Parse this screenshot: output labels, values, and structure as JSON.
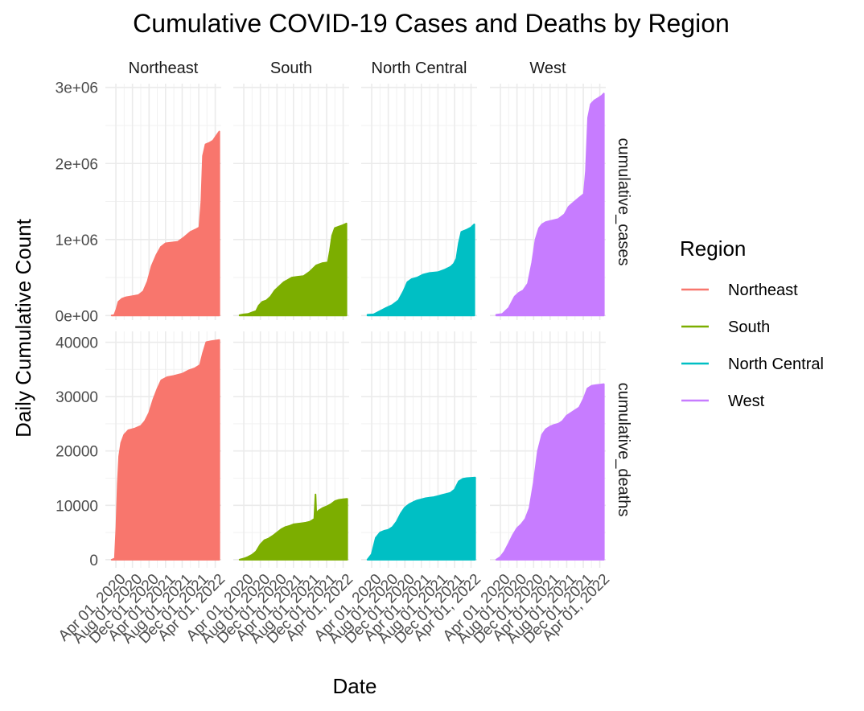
{
  "chart_data": {
    "type": "area",
    "title": "Cumulative COVID-19 Cases and Deaths by Region",
    "xlabel": "Date",
    "ylabel": "Daily Cumulative Count",
    "x_tick_labels": [
      "Apr 01, 2020",
      "Aug 01, 2020",
      "Dec 01, 2020",
      "Apr 01, 2021",
      "Aug 01, 2021",
      "Dec 01, 2021",
      "Apr 01, 2022"
    ],
    "x_ticks": [
      "2020-04-01",
      "2020-08-01",
      "2020-12-01",
      "2021-04-01",
      "2021-08-01",
      "2021-12-01",
      "2022-04-01"
    ],
    "xlim": [
      "2020-01-15",
      "2022-05-15"
    ],
    "facet_columns": [
      "Northeast",
      "South",
      "North Central",
      "West"
    ],
    "facet_rows": [
      "cumulative_cases",
      "cumulative_deaths"
    ],
    "row_axes": {
      "cumulative_cases": {
        "ylim": [
          -60000,
          3050000
        ],
        "ticks": [
          0,
          1000000,
          2000000,
          3000000
        ],
        "tick_labels": [
          "0e+00",
          "1e+06",
          "2e+06",
          "3e+06"
        ]
      },
      "cumulative_deaths": {
        "ylim": [
          -1500,
          42000
        ],
        "ticks": [
          0,
          10000,
          20000,
          30000,
          40000
        ],
        "tick_labels": [
          "0",
          "10000",
          "20000",
          "30000",
          "40000"
        ]
      }
    },
    "legend": {
      "title": "Region",
      "position": "right",
      "entries": [
        "Northeast",
        "South",
        "North Central",
        "West"
      ]
    },
    "colors": {
      "Northeast": "#F8766D",
      "South": "#7CAE00",
      "North Central": "#00BFC4",
      "West": "#C77CFF"
    },
    "grid": true,
    "series": [
      {
        "name": "Northeast",
        "metric": "cumulative_cases",
        "x": [
          "2020-03-01",
          "2020-03-20",
          "2020-04-05",
          "2020-04-20",
          "2020-05-15",
          "2020-06-15",
          "2020-08-01",
          "2020-09-15",
          "2020-10-20",
          "2020-11-20",
          "2020-12-20",
          "2021-01-25",
          "2021-02-25",
          "2021-04-01",
          "2021-05-15",
          "2021-07-01",
          "2021-08-15",
          "2021-10-01",
          "2021-11-15",
          "2021-12-05",
          "2021-12-20",
          "2022-01-01",
          "2022-01-20",
          "2022-02-15",
          "2022-03-15",
          "2022-04-15",
          "2022-05-01"
        ],
        "values": [
          0,
          5000,
          80000,
          180000,
          220000,
          240000,
          255000,
          270000,
          320000,
          450000,
          650000,
          800000,
          900000,
          950000,
          960000,
          970000,
          1030000,
          1100000,
          1140000,
          1160000,
          1500000,
          2100000,
          2250000,
          2270000,
          2300000,
          2380000,
          2420000
        ]
      },
      {
        "name": "South",
        "metric": "cumulative_cases",
        "x": [
          "2020-03-01",
          "2020-04-01",
          "2020-05-01",
          "2020-06-01",
          "2020-07-01",
          "2020-07-20",
          "2020-08-15",
          "2020-09-15",
          "2020-10-15",
          "2020-11-15",
          "2020-12-15",
          "2021-01-20",
          "2021-02-20",
          "2021-03-20",
          "2021-05-01",
          "2021-06-15",
          "2021-08-01",
          "2021-09-15",
          "2021-11-01",
          "2021-12-10",
          "2021-12-25",
          "2022-01-10",
          "2022-01-30",
          "2022-03-01",
          "2022-04-01",
          "2022-04-25"
        ],
        "values": [
          5000,
          15000,
          20000,
          40000,
          60000,
          130000,
          180000,
          200000,
          250000,
          330000,
          380000,
          440000,
          470000,
          500000,
          510000,
          520000,
          580000,
          660000,
          690000,
          700000,
          850000,
          1050000,
          1150000,
          1170000,
          1190000,
          1210000
        ]
      },
      {
        "name": "North Central",
        "metric": "cumulative_cases",
        "x": [
          "2020-03-01",
          "2020-04-15",
          "2020-06-01",
          "2020-07-15",
          "2020-09-01",
          "2020-10-15",
          "2020-11-20",
          "2020-12-20",
          "2021-01-20",
          "2021-03-01",
          "2021-04-15",
          "2021-06-01",
          "2021-08-01",
          "2021-09-15",
          "2021-11-01",
          "2021-11-25",
          "2021-12-15",
          "2022-01-01",
          "2022-01-20",
          "2022-03-01",
          "2022-04-01",
          "2022-04-25"
        ],
        "values": [
          10000,
          15000,
          60000,
          100000,
          140000,
          200000,
          320000,
          440000,
          480000,
          500000,
          540000,
          560000,
          570000,
          600000,
          640000,
          680000,
          750000,
          950000,
          1100000,
          1130000,
          1160000,
          1200000
        ]
      },
      {
        "name": "West",
        "metric": "cumulative_cases",
        "x": [
          "2020-03-01",
          "2020-04-15",
          "2020-06-01",
          "2020-07-15",
          "2020-08-15",
          "2020-09-15",
          "2020-10-20",
          "2020-11-20",
          "2020-12-15",
          "2021-01-10",
          "2021-02-01",
          "2021-03-01",
          "2021-04-15",
          "2021-06-01",
          "2021-07-15",
          "2021-08-15",
          "2021-09-15",
          "2021-11-01",
          "2021-12-05",
          "2021-12-20",
          "2022-01-05",
          "2022-01-25",
          "2022-02-20",
          "2022-03-20",
          "2022-04-15",
          "2022-05-01"
        ],
        "values": [
          10000,
          20000,
          100000,
          250000,
          300000,
          330000,
          420000,
          700000,
          1000000,
          1150000,
          1200000,
          1230000,
          1250000,
          1270000,
          1330000,
          1430000,
          1480000,
          1550000,
          1600000,
          1900000,
          2600000,
          2780000,
          2830000,
          2860000,
          2890000,
          2920000
        ]
      },
      {
        "name": "Northeast",
        "metric": "cumulative_deaths",
        "x": [
          "2020-03-01",
          "2020-03-25",
          "2020-04-05",
          "2020-04-15",
          "2020-04-25",
          "2020-05-10",
          "2020-06-01",
          "2020-07-01",
          "2020-08-15",
          "2020-10-01",
          "2020-11-01",
          "2020-12-01",
          "2021-01-01",
          "2021-02-01",
          "2021-03-01",
          "2021-04-15",
          "2021-06-01",
          "2021-08-01",
          "2021-09-15",
          "2021-11-01",
          "2021-12-10",
          "2022-01-01",
          "2022-01-25",
          "2022-03-01",
          "2022-04-01",
          "2022-05-01"
        ],
        "values": [
          0,
          200,
          6000,
          14000,
          19000,
          21500,
          23000,
          23800,
          24100,
          24600,
          25500,
          27000,
          29500,
          31500,
          33000,
          33600,
          33800,
          34200,
          34800,
          35200,
          35800,
          38000,
          40000,
          40200,
          40300,
          40400
        ]
      },
      {
        "name": "South",
        "metric": "cumulative_deaths",
        "x": [
          "2020-03-01",
          "2020-04-01",
          "2020-05-01",
          "2020-06-01",
          "2020-07-01",
          "2020-08-01",
          "2020-09-01",
          "2020-10-01",
          "2020-11-01",
          "2020-12-01",
          "2021-01-01",
          "2021-02-01",
          "2021-03-01",
          "2021-04-01",
          "2021-05-01",
          "2021-06-01",
          "2021-07-01",
          "2021-08-01",
          "2021-09-01",
          "2021-09-10",
          "2021-09-15",
          "2021-10-01",
          "2021-11-01",
          "2021-12-01",
          "2022-01-01",
          "2022-02-01",
          "2022-03-01",
          "2022-04-01",
          "2022-05-01"
        ],
        "values": [
          0,
          200,
          500,
          900,
          1500,
          2800,
          3600,
          3900,
          4400,
          5000,
          5600,
          6000,
          6200,
          6500,
          6600,
          6700,
          6800,
          7000,
          7500,
          12000,
          8500,
          9000,
          9500,
          9800,
          10200,
          10800,
          11000,
          11100,
          11200
        ]
      },
      {
        "name": "North Central",
        "metric": "cumulative_deaths",
        "x": [
          "2020-03-01",
          "2020-04-01",
          "2020-05-01",
          "2020-06-01",
          "2020-07-01",
          "2020-08-01",
          "2020-09-01",
          "2020-10-01",
          "2020-11-01",
          "2020-12-01",
          "2021-01-01",
          "2021-02-01",
          "2021-03-01",
          "2021-04-01",
          "2021-05-01",
          "2021-06-01",
          "2021-07-01",
          "2021-08-01",
          "2021-09-01",
          "2021-10-01",
          "2021-11-01",
          "2021-12-01",
          "2022-01-01",
          "2022-02-01",
          "2022-03-01",
          "2022-04-01",
          "2022-05-01"
        ],
        "values": [
          0,
          1000,
          4000,
          5000,
          5300,
          5500,
          6000,
          7000,
          8500,
          9600,
          10200,
          10600,
          10900,
          11100,
          11300,
          11400,
          11500,
          11700,
          11900,
          12100,
          12300,
          12900,
          14400,
          14900,
          15000,
          15050,
          15100
        ]
      },
      {
        "name": "West",
        "metric": "cumulative_deaths",
        "x": [
          "2020-03-01",
          "2020-04-01",
          "2020-05-01",
          "2020-06-01",
          "2020-07-01",
          "2020-08-01",
          "2020-09-01",
          "2020-10-01",
          "2020-11-01",
          "2020-12-01",
          "2021-01-01",
          "2021-02-01",
          "2021-03-01",
          "2021-04-01",
          "2021-05-01",
          "2021-06-01",
          "2021-07-01",
          "2021-08-01",
          "2021-09-01",
          "2021-10-01",
          "2021-11-01",
          "2021-12-01",
          "2022-01-01",
          "2022-02-01",
          "2022-03-01",
          "2022-04-01",
          "2022-05-01"
        ],
        "values": [
          0,
          500,
          1500,
          3000,
          4500,
          5800,
          6500,
          7500,
          9500,
          14000,
          20000,
          23000,
          24000,
          24500,
          24800,
          25000,
          25500,
          26500,
          27000,
          27500,
          28000,
          29500,
          31500,
          32000,
          32100,
          32200,
          32300
        ]
      }
    ]
  }
}
